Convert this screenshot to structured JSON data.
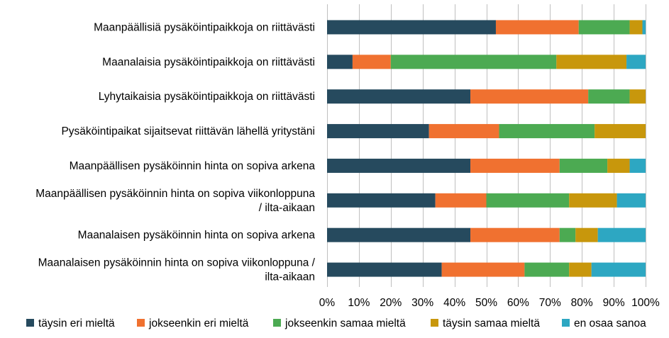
{
  "chart_data": {
    "type": "bar",
    "orientation": "horizontal",
    "stacked": "percent",
    "categories": [
      [
        "Maanpäällisiä pysäköintipaikkoja on riittävästi"
      ],
      [
        "Maanalaisia pysäköintipaikkoja on riittävästi"
      ],
      [
        "Lyhytaikaisia pysäköintipaikkoja on riittävästi"
      ],
      [
        "Pysäköintipaikat sijaitsevat riittävän lähellä yritystäni"
      ],
      [
        "Maanpäällisen pysäköinnin hinta on sopiva arkena"
      ],
      [
        "Maanpäällisen pysäköinnin hinta on sopiva viikonloppuna",
        "/ ilta-aikaan"
      ],
      [
        "Maanalaisen pysäköinnin hinta on sopiva arkena"
      ],
      [
        "Maanalaisen pysäköinnin hinta on sopiva viikonloppuna /",
        "ilta-aikaan"
      ]
    ],
    "series": [
      {
        "name": "täysin eri mieltä",
        "color": "#264a5e",
        "values": [
          53,
          8,
          45,
          32,
          45,
          34,
          45,
          36
        ]
      },
      {
        "name": "jokseenkin eri mieltä",
        "color": "#f07130",
        "values": [
          26,
          12,
          37,
          22,
          28,
          16,
          28,
          26
        ]
      },
      {
        "name": "jokseenkin samaa mieltä",
        "color": "#4caa52",
        "values": [
          16,
          52,
          13,
          30,
          15,
          26,
          5,
          14
        ]
      },
      {
        "name": "täysin samaa mieltä",
        "color": "#c8970c",
        "values": [
          4,
          22,
          5,
          16,
          7,
          15,
          7,
          7
        ]
      },
      {
        "name": "en osaa sanoa",
        "color": "#2da7c2",
        "values": [
          1,
          6,
          0,
          0,
          5,
          9,
          15,
          17
        ]
      }
    ],
    "xlim": [
      0,
      100
    ],
    "xticks": [
      "0%",
      "10%",
      "20%",
      "30%",
      "40%",
      "50%",
      "60%",
      "70%",
      "80%",
      "90%",
      "100%"
    ],
    "grid": true,
    "legend_position": "bottom"
  }
}
